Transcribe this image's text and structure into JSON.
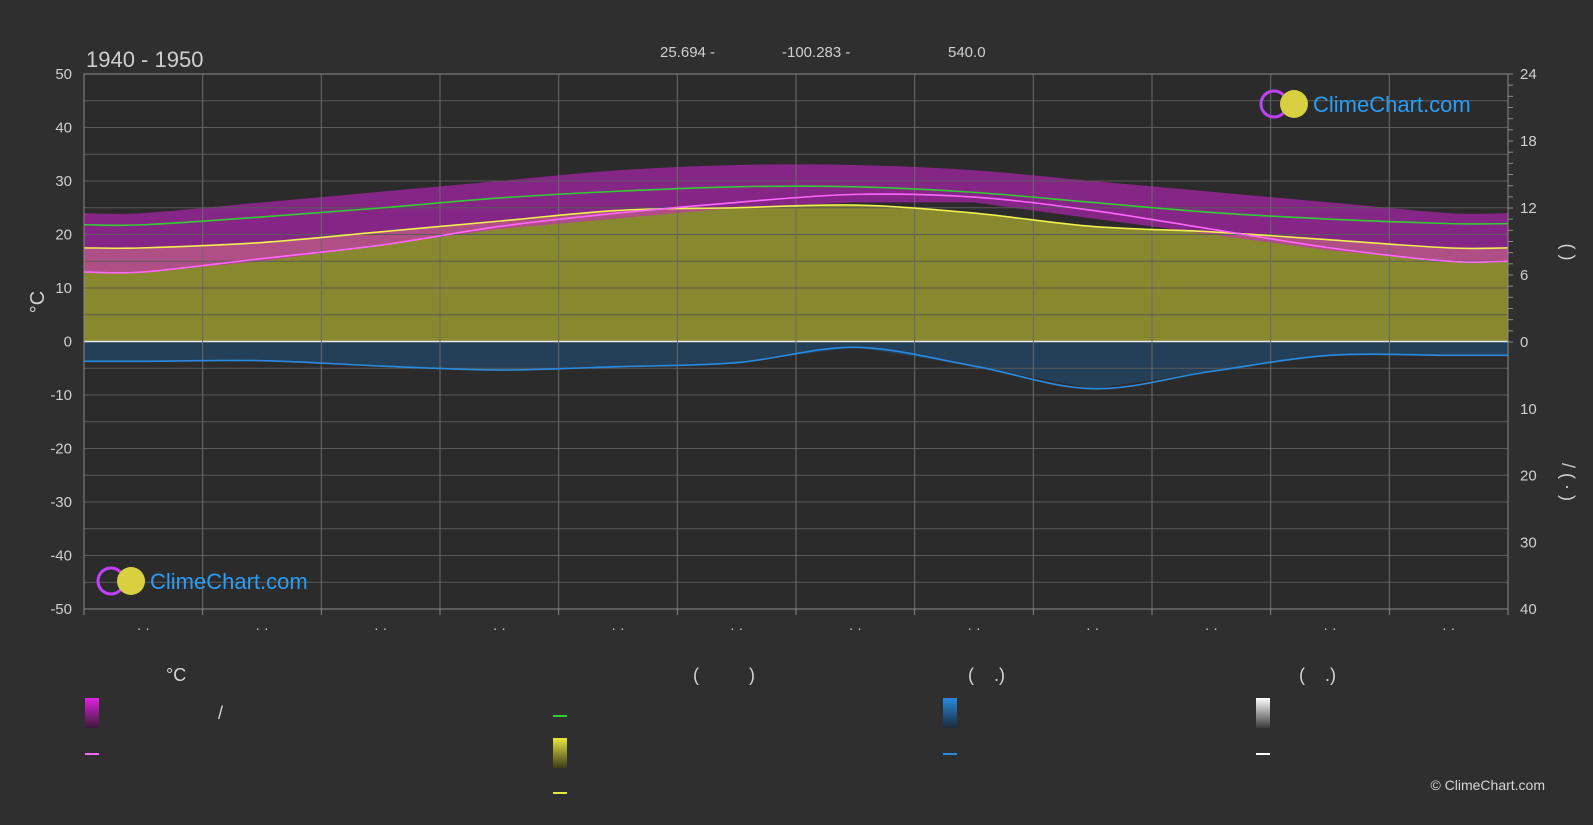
{
  "header": {
    "period": "1940 - 1950",
    "lat_text": "25.694 -",
    "lon_text": "-100.283 -",
    "elev_text": "540.0"
  },
  "brand": {
    "name": "ClimeChart.com",
    "copyright": "© ClimeChart.com",
    "colors": {
      "ring": "#c040ff",
      "sun": "#d8d040",
      "text": "#2a9df4"
    }
  },
  "axes": {
    "left_label": "°C",
    "left_ticks": [
      "50",
      "40",
      "30",
      "20",
      "10",
      "0",
      "-10",
      "-20",
      "-30",
      "-40",
      "-50"
    ],
    "right_label_top": "(    )",
    "right_label_bottom": "/    (  ·  )",
    "right_ticks_top": [
      "24",
      "18",
      "12",
      "6",
      "0"
    ],
    "right_ticks_bottom": [
      "10",
      "20",
      "30",
      "40"
    ],
    "month_labels": [
      "· ·",
      "· ·",
      "· ·",
      "· ·",
      "· ·",
      "· ·",
      "· ·",
      "· ·",
      "· ·",
      "· ·",
      "· ·",
      "· ·"
    ]
  },
  "chart_data": {
    "type": "area",
    "x_unit": "month",
    "x": [
      0.5,
      1.5,
      2.5,
      3.5,
      4.5,
      5.5,
      6.5,
      7.5,
      8.5,
      9.5,
      10.5,
      11.5
    ],
    "ylim": [
      -50,
      50
    ],
    "y2lim_top": [
      0,
      24
    ],
    "y2lim_bottom": [
      0,
      40
    ],
    "grid": true,
    "series": [
      {
        "name": "",
        "color": "#33cc33",
        "axis": "right_top",
        "values": [
          10.5,
          11.2,
          12.0,
          12.9,
          13.5,
          13.9,
          13.9,
          13.4,
          12.5,
          11.6,
          11.0,
          10.6
        ]
      },
      {
        "name": "",
        "color": "#f0f050",
        "axis": "left",
        "values": [
          17.5,
          18.5,
          20.5,
          22.5,
          24.5,
          25.0,
          25.5,
          24.0,
          21.5,
          20.5,
          19.0,
          17.5
        ]
      },
      {
        "name": "",
        "color": "#ff66ff",
        "axis": "left",
        "values": [
          13.0,
          15.5,
          18.0,
          21.5,
          24.0,
          26.0,
          27.5,
          27.0,
          24.5,
          21.0,
          17.5,
          15.0
        ]
      },
      {
        "name": "",
        "color": "#2a8ae0",
        "axis": "right_bottom",
        "values": [
          2.9,
          2.8,
          3.6,
          4.2,
          3.7,
          3.1,
          0.8,
          3.6,
          7.0,
          4.4,
          2.0,
          2.0
        ]
      }
    ],
    "bands": {
      "temp_range": {
        "color": "#d020d0",
        "low": [
          13,
          15,
          18,
          21,
          23,
          25,
          26,
          26,
          23,
          20,
          17,
          15
        ],
        "high": [
          24,
          26,
          28,
          30,
          32,
          33,
          33,
          32,
          30,
          28,
          26,
          24
        ]
      },
      "sunshine_fill": {
        "color": "#a8a830"
      },
      "precip_fill": {
        "color": "#1a5a90"
      }
    }
  },
  "legend": {
    "col1": {
      "head": "°C",
      "row1_text": "/",
      "swatch1": "#e020e0",
      "swatch2": "#ff66ff"
    },
    "col2": {
      "head": "(          )",
      "swatch1": "#33cc33",
      "swatch2": "#e8e840",
      "swatch3": "#e8e840"
    },
    "col3": {
      "head": "(    .)",
      "swatch1": "#2a8ae0",
      "swatch2": "#2a8ae0"
    },
    "col4": {
      "head": "(    .)",
      "swatch1": "#ffffff",
      "swatch2": "#ffffff"
    }
  }
}
